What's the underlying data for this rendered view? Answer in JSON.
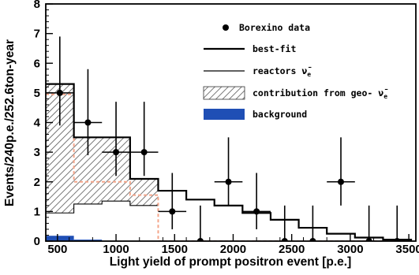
{
  "chart_data": {
    "type": "histogram",
    "xlabel": "Light yield of prompt positron event [p.e.]",
    "ylabel": "Events/240p.e./252.6ton-year",
    "xlim": [
      400,
      3560
    ],
    "ylim": [
      0,
      8
    ],
    "x_ticks": [
      500,
      1000,
      1500,
      2000,
      2500,
      3000,
      3500
    ],
    "y_ticks": [
      0,
      1,
      2,
      3,
      4,
      5,
      6,
      7,
      8
    ],
    "bin_edges": [
      400,
      640,
      880,
      1120,
      1360,
      1600,
      1840,
      2080,
      2320,
      2560,
      2800,
      3040,
      3280,
      3520
    ],
    "legend": {
      "data": "Borexino data",
      "bestfit": "best-fit",
      "reactors_prefix": "reactors ",
      "reactors_symbol": "ν̄",
      "reactors_sub": "e",
      "geo_prefix": "contribution from geo- ",
      "geo_symbol": "ν̄",
      "geo_sub": "e",
      "background": "background"
    },
    "series": {
      "best_fit": [
        5.3,
        3.5,
        3.5,
        2.1,
        1.7,
        1.4,
        1.2,
        0.95,
        0.72,
        0.45,
        0.25,
        0.12,
        0.05
      ],
      "geo": [
        5.3,
        3.5,
        3.5,
        2.1,
        0.0,
        0.0,
        0.0,
        0.0,
        0.0,
        0.0,
        0.0,
        0.0,
        0.0
      ],
      "geo_lower": [
        0.95,
        1.25,
        1.35,
        1.2,
        0.0,
        0.0,
        0.0,
        0.0,
        0.0,
        0.0,
        0.0,
        0.0,
        0.0
      ],
      "reactors_dashed": [
        4.95,
        2.0,
        2.0,
        1.55,
        0.0,
        0.0,
        0.0,
        0.0,
        0.0,
        0.0,
        0.0,
        0.0,
        0.0
      ],
      "background": [
        0.18,
        0.05,
        0.0,
        0.0,
        0.0,
        0.0,
        0.0,
        0.0,
        0.0,
        0.0,
        0.0,
        0.0,
        0.0
      ],
      "data_points": [
        {
          "x": 520,
          "y": 5.0,
          "xerr": 120,
          "ylo": 3.9,
          "yhi": 6.9
        },
        {
          "x": 760,
          "y": 4.0,
          "xerr": 120,
          "ylo": 2.9,
          "yhi": 5.8
        },
        {
          "x": 1000,
          "y": 3.0,
          "xerr": 120,
          "ylo": 2.2,
          "yhi": 4.7
        },
        {
          "x": 1240,
          "y": 3.0,
          "xerr": 120,
          "ylo": 2.2,
          "yhi": 4.7
        },
        {
          "x": 1480,
          "y": 1.0,
          "xerr": 120,
          "ylo": 0.4,
          "yhi": 2.3
        },
        {
          "x": 1720,
          "y": 0.0,
          "xerr": 0,
          "ylo": 0.0,
          "yhi": 1.2
        },
        {
          "x": 1960,
          "y": 2.0,
          "xerr": 120,
          "ylo": 1.2,
          "yhi": 3.5
        },
        {
          "x": 2200,
          "y": 1.0,
          "xerr": 120,
          "ylo": 0.4,
          "yhi": 2.3
        },
        {
          "x": 2440,
          "y": 0.0,
          "xerr": 0,
          "ylo": 0.0,
          "yhi": 1.2
        },
        {
          "x": 2680,
          "y": 0.0,
          "xerr": 0,
          "ylo": 0.0,
          "yhi": 1.2
        },
        {
          "x": 2920,
          "y": 2.0,
          "xerr": 120,
          "ylo": 1.2,
          "yhi": 3.5
        },
        {
          "x": 3160,
          "y": 0.0,
          "xerr": 0,
          "ylo": 0.0,
          "yhi": 1.2
        },
        {
          "x": 3400,
          "y": 0.0,
          "xerr": 0,
          "ylo": 0.0,
          "yhi": 1.2
        }
      ]
    },
    "colors": {
      "bestfit": "#000000",
      "geo_hatch": "#555555",
      "reactors_dashed": "#f4a58a",
      "background": "#1f4fb5",
      "frame": "#000000"
    }
  }
}
